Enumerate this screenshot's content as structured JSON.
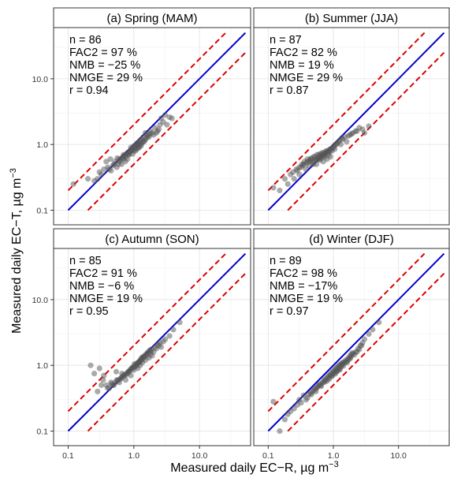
{
  "figure": {
    "xlabel_main": "Measured daily EC−R, µg m",
    "xlabel_sup": "−3",
    "ylabel_main": "Measured daily EC−T, µg m",
    "ylabel_sup": "−3"
  },
  "chart_data": [
    {
      "type": "scatter",
      "title": "(a) Spring (MAM)",
      "stats": [
        "n = 86",
        "FAC2 = 97 %",
        "NMB = −25 %",
        "NMGE = 29 %",
        "r = 0.94"
      ],
      "xscale": "log",
      "yscale": "log",
      "xlim": [
        0.06,
        60
      ],
      "ylim": [
        0.06,
        60
      ],
      "x_ticks": [
        "0.1",
        "1.0",
        "10.0"
      ],
      "y_ticks": [
        "0.1",
        "1.0",
        "10.0"
      ],
      "grid": true,
      "reference_lines": {
        "one_to_one": {
          "color": "#0000cc"
        },
        "factor_of_two": {
          "color": "#dd0000",
          "style": "dashed"
        }
      },
      "marker_color": "#555555",
      "points": {
        "x": [
          0.12,
          0.2,
          0.25,
          0.3,
          0.35,
          0.4,
          0.45,
          0.5,
          0.55,
          0.6,
          0.6,
          0.65,
          0.7,
          0.7,
          0.75,
          0.8,
          0.8,
          0.85,
          0.9,
          0.9,
          0.95,
          1.0,
          1.0,
          1.05,
          1.1,
          1.1,
          1.15,
          1.2,
          1.2,
          1.3,
          1.3,
          1.4,
          1.4,
          1.5,
          1.5,
          1.6,
          1.7,
          1.8,
          1.9,
          2.0,
          2.1,
          2.3,
          2.5,
          2.6,
          2.8,
          3.0,
          3.2,
          3.5,
          3.8,
          0.28,
          0.32,
          0.42,
          0.48,
          0.52,
          0.58,
          0.62,
          0.66,
          0.72,
          0.78,
          0.82,
          0.88,
          0.92,
          0.98,
          1.02,
          1.08,
          1.12,
          1.18,
          1.22,
          1.25,
          1.35,
          1.45,
          1.55,
          1.65,
          1.75,
          0.38,
          0.44,
          0.56,
          0.68,
          0.74,
          0.86,
          0.96,
          1.06,
          1.16,
          1.28,
          2.2,
          2.4
        ],
        "y": [
          0.25,
          0.3,
          0.28,
          0.38,
          0.42,
          0.45,
          0.4,
          0.5,
          0.45,
          0.55,
          0.6,
          0.5,
          0.6,
          0.7,
          0.65,
          0.6,
          0.75,
          0.7,
          0.8,
          0.9,
          0.85,
          0.8,
          0.95,
          0.9,
          0.85,
          1.0,
          0.95,
          0.9,
          1.1,
          1.0,
          1.2,
          1.1,
          1.3,
          1.2,
          1.5,
          1.4,
          1.3,
          1.6,
          1.5,
          1.4,
          1.8,
          1.6,
          2.0,
          2.5,
          2.2,
          2.8,
          2.0,
          2.6,
          2.5,
          0.3,
          0.35,
          0.42,
          0.48,
          0.55,
          0.5,
          0.58,
          0.62,
          0.68,
          0.72,
          0.7,
          0.78,
          0.82,
          0.88,
          0.92,
          0.96,
          1.05,
          1.0,
          1.02,
          1.15,
          1.08,
          1.12,
          1.25,
          1.35,
          1.45,
          0.55,
          0.6,
          0.62,
          0.65,
          0.55,
          0.75,
          0.72,
          0.8,
          0.88,
          0.95,
          1.5,
          1.7
        ]
      }
    },
    {
      "type": "scatter",
      "title": "(b) Summer (JJA)",
      "stats": [
        "n = 87",
        "FAC2 = 82 %",
        "NMB = 19 %",
        "NMGE = 29 %",
        "r = 0.87"
      ],
      "xscale": "log",
      "yscale": "log",
      "xlim": [
        0.06,
        60
      ],
      "ylim": [
        0.06,
        60
      ],
      "x_ticks": [
        "0.1",
        "1.0",
        "10.0"
      ],
      "y_ticks": [
        "0.1",
        "1.0",
        "10.0"
      ],
      "grid": true,
      "reference_lines": {
        "one_to_one": {
          "color": "#0000cc"
        },
        "factor_of_two": {
          "color": "#dd0000",
          "style": "dashed"
        }
      },
      "marker_color": "#555555",
      "points": {
        "x": [
          0.12,
          0.15,
          0.18,
          0.2,
          0.22,
          0.25,
          0.28,
          0.3,
          0.32,
          0.35,
          0.38,
          0.4,
          0.42,
          0.45,
          0.48,
          0.5,
          0.52,
          0.55,
          0.58,
          0.6,
          0.62,
          0.65,
          0.68,
          0.7,
          0.72,
          0.75,
          0.78,
          0.8,
          0.82,
          0.85,
          0.88,
          0.9,
          0.95,
          1.0,
          1.05,
          1.1,
          1.2,
          1.3,
          1.4,
          1.5,
          1.6,
          1.8,
          2.0,
          2.2,
          2.5,
          2.8,
          3.0,
          3.5,
          0.3,
          0.33,
          0.36,
          0.4,
          0.44,
          0.46,
          0.5,
          0.53,
          0.56,
          0.6,
          0.63,
          0.66,
          0.7,
          0.74,
          0.77,
          0.8,
          0.84,
          0.88,
          0.92,
          0.96,
          1.02,
          1.08,
          1.15,
          1.25,
          1.35,
          0.24,
          0.27,
          0.34,
          0.39,
          0.43,
          0.49,
          0.54,
          0.59,
          0.64,
          0.69,
          0.73,
          1.7,
          1.9,
          2.3
        ],
        "y": [
          0.22,
          0.2,
          0.3,
          0.25,
          0.35,
          0.3,
          0.4,
          0.35,
          0.45,
          0.5,
          0.42,
          0.55,
          0.48,
          0.6,
          0.52,
          0.55,
          0.65,
          0.5,
          0.6,
          0.7,
          0.58,
          0.62,
          0.75,
          0.55,
          0.7,
          0.65,
          0.8,
          0.6,
          0.75,
          0.7,
          0.85,
          0.65,
          0.8,
          0.9,
          0.85,
          1.0,
          1.1,
          1.0,
          1.2,
          1.3,
          1.1,
          1.4,
          1.5,
          1.6,
          1.8,
          1.7,
          1.5,
          1.9,
          0.45,
          0.5,
          0.55,
          0.6,
          0.58,
          0.62,
          0.65,
          0.6,
          0.7,
          0.66,
          0.72,
          0.68,
          0.74,
          0.72,
          0.78,
          0.76,
          0.8,
          0.78,
          0.85,
          0.88,
          0.95,
          1.0,
          1.05,
          1.15,
          1.25,
          0.38,
          0.42,
          0.48,
          0.52,
          0.56,
          0.5,
          0.58,
          0.6,
          0.64,
          0.66,
          0.7,
          1.35,
          1.45,
          1.6
        ]
      }
    },
    {
      "type": "scatter",
      "title": "(c) Autumn (SON)",
      "stats": [
        "n = 85",
        "FAC2 = 91 %",
        "NMB = −6 %",
        "NMGE = 19 %",
        "r = 0.95"
      ],
      "xscale": "log",
      "yscale": "log",
      "xlim": [
        0.06,
        60
      ],
      "ylim": [
        0.06,
        60
      ],
      "x_ticks": [
        "0.1",
        "1.0",
        "10.0"
      ],
      "y_ticks": [
        "0.1",
        "1.0",
        "10.0"
      ],
      "grid": true,
      "reference_lines": {
        "one_to_one": {
          "color": "#0000cc"
        },
        "factor_of_two": {
          "color": "#dd0000",
          "style": "dashed"
        }
      },
      "marker_color": "#555555",
      "points": {
        "x": [
          0.22,
          0.25,
          0.3,
          0.32,
          0.35,
          0.4,
          0.45,
          0.5,
          0.55,
          0.6,
          0.65,
          0.7,
          0.75,
          0.8,
          0.85,
          0.9,
          0.95,
          1.0,
          1.05,
          1.1,
          1.15,
          1.2,
          1.25,
          1.3,
          1.35,
          1.4,
          1.5,
          1.6,
          1.7,
          1.8,
          1.9,
          2.0,
          2.2,
          2.4,
          2.6,
          2.8,
          3.0,
          3.5,
          4.0,
          5.0,
          0.42,
          0.48,
          0.52,
          0.58,
          0.62,
          0.68,
          0.72,
          0.78,
          0.82,
          0.88,
          0.92,
          0.98,
          1.02,
          1.08,
          1.12,
          1.18,
          1.22,
          1.28,
          1.32,
          1.38,
          1.45,
          1.55,
          1.65,
          1.75,
          1.85,
          0.38,
          0.56,
          0.64,
          0.74,
          0.86,
          0.96,
          1.06,
          1.16,
          1.26,
          1.42,
          1.62,
          1.82,
          2.1,
          2.3,
          2.5,
          0.28,
          0.34,
          0.46,
          0.54,
          0.66
        ],
        "y": [
          1.0,
          0.75,
          0.9,
          0.5,
          0.7,
          0.45,
          0.55,
          0.5,
          0.6,
          0.55,
          0.65,
          0.7,
          0.6,
          0.75,
          0.8,
          0.7,
          0.9,
          0.85,
          0.95,
          1.0,
          0.9,
          1.1,
          1.0,
          1.2,
          1.1,
          1.3,
          1.2,
          1.4,
          1.3,
          1.5,
          1.4,
          1.6,
          1.8,
          2.0,
          1.9,
          2.3,
          2.5,
          2.8,
          3.5,
          4.5,
          0.45,
          0.5,
          0.55,
          0.6,
          0.62,
          0.68,
          0.72,
          0.76,
          0.8,
          0.86,
          0.9,
          0.95,
          1.05,
          1.0,
          1.08,
          1.12,
          1.15,
          1.25,
          1.3,
          1.35,
          1.4,
          1.5,
          1.6,
          1.7,
          1.75,
          0.5,
          0.58,
          0.64,
          0.7,
          0.82,
          0.92,
          1.02,
          1.08,
          1.18,
          1.32,
          1.5,
          1.65,
          1.9,
          2.1,
          2.2,
          0.4,
          0.6,
          0.52,
          0.8,
          0.75
        ]
      }
    },
    {
      "type": "scatter",
      "title": "(d) Winter (DJF)",
      "stats": [
        "n = 89",
        "FAC2 = 98  %",
        "NMB = −17%",
        "NMGE = 19 %",
        "r = 0.97"
      ],
      "xscale": "log",
      "yscale": "log",
      "xlim": [
        0.06,
        60
      ],
      "ylim": [
        0.06,
        60
      ],
      "x_ticks": [
        "0.1",
        "1.0",
        "10.0"
      ],
      "y_ticks": [
        "0.1",
        "1.0",
        "10.0"
      ],
      "grid": true,
      "reference_lines": {
        "one_to_one": {
          "color": "#0000cc"
        },
        "factor_of_two": {
          "color": "#dd0000",
          "style": "dashed"
        }
      },
      "marker_color": "#555555",
      "points": {
        "x": [
          0.12,
          0.15,
          0.18,
          0.2,
          0.22,
          0.25,
          0.28,
          0.3,
          0.35,
          0.4,
          0.45,
          0.5,
          0.55,
          0.6,
          0.65,
          0.7,
          0.75,
          0.8,
          0.85,
          0.9,
          0.95,
          1.0,
          1.05,
          1.1,
          1.15,
          1.2,
          1.25,
          1.3,
          1.35,
          1.4,
          1.5,
          1.6,
          1.7,
          1.8,
          1.9,
          2.0,
          2.2,
          2.4,
          2.6,
          2.8,
          3.0,
          3.5,
          4.0,
          5.0,
          0.42,
          0.48,
          0.52,
          0.58,
          0.62,
          0.68,
          0.72,
          0.78,
          0.82,
          0.88,
          0.92,
          0.98,
          1.02,
          1.08,
          1.12,
          1.18,
          1.22,
          1.28,
          1.32,
          1.38,
          1.45,
          1.55,
          1.65,
          1.75,
          1.85,
          1.95,
          0.38,
          0.56,
          0.64,
          0.74,
          0.86,
          0.96,
          1.06,
          1.16,
          1.26,
          1.42,
          1.62,
          1.82,
          2.1,
          2.3,
          2.5,
          2.7,
          0.32,
          0.46,
          0.54
        ],
        "y": [
          0.28,
          0.1,
          0.15,
          0.18,
          0.2,
          0.22,
          0.25,
          0.3,
          0.35,
          0.32,
          0.38,
          0.42,
          0.45,
          0.5,
          0.48,
          0.55,
          0.6,
          0.58,
          0.65,
          0.7,
          0.68,
          0.75,
          0.8,
          0.78,
          0.85,
          0.9,
          0.88,
          0.95,
          1.0,
          1.05,
          1.1,
          1.15,
          1.2,
          1.3,
          1.4,
          1.5,
          1.6,
          1.8,
          2.0,
          2.2,
          2.5,
          3.0,
          3.5,
          4.5,
          0.36,
          0.4,
          0.44,
          0.48,
          0.52,
          0.55,
          0.6,
          0.64,
          0.68,
          0.72,
          0.76,
          0.8,
          0.84,
          0.88,
          0.92,
          0.96,
          1.0,
          1.02,
          1.06,
          1.1,
          1.12,
          1.2,
          1.25,
          1.35,
          1.45,
          1.55,
          0.3,
          0.46,
          0.5,
          0.56,
          0.62,
          0.7,
          0.74,
          0.82,
          0.86,
          0.98,
          1.1,
          1.28,
          1.45,
          1.6,
          1.75,
          2.0,
          0.27,
          0.36,
          0.4
        ]
      }
    }
  ]
}
